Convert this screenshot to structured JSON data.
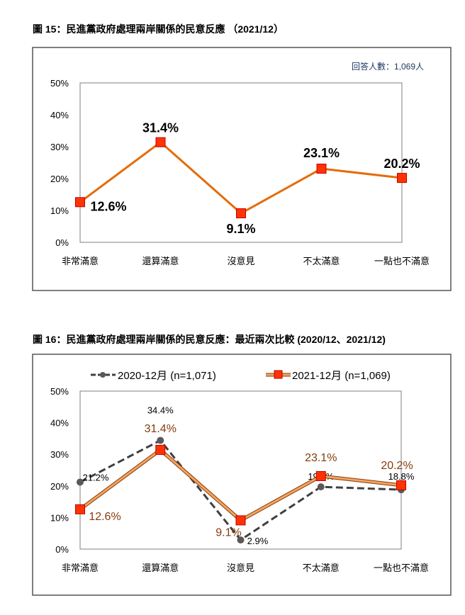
{
  "chart_data": [
    {
      "type": "line",
      "title": "圖 15：民進黨政府處理兩岸關係的民意反應 （2021/12）",
      "annotation": "回答人數：1,069人",
      "categories": [
        "非常滿意",
        "還算滿意",
        "沒意見",
        "不太滿意",
        "一點也不滿意"
      ],
      "ylim": [
        0,
        50
      ],
      "yticks": [
        "0%",
        "10%",
        "20%",
        "30%",
        "40%",
        "50%"
      ],
      "grid": false,
      "series": [
        {
          "values": [
            12.6,
            31.4,
            9.1,
            23.1,
            20.2
          ],
          "labels": [
            "12.6%",
            "31.4%",
            "9.1%",
            "23.1%",
            "20.2%"
          ],
          "color": "#e46c0a",
          "marker": "square"
        }
      ]
    },
    {
      "type": "line",
      "title": "圖 16：民進黨政府處理兩岸關係的民意反應：最近兩次比較 (2020/12、2021/12)",
      "categories": [
        "非常滿意",
        "還算滿意",
        "沒意見",
        "不太滿意",
        "一點也不滿意"
      ],
      "ylim": [
        0,
        50
      ],
      "yticks": [
        "0%",
        "10%",
        "20%",
        "30%",
        "40%",
        "50%"
      ],
      "grid": false,
      "legend": "top",
      "series": [
        {
          "name": "2020-12月  (n=1,071)",
          "values": [
            21.2,
            34.4,
            2.9,
            19.7,
            18.8
          ],
          "labels": [
            "21.2%",
            "34.4%",
            "2.9%",
            "19.7%",
            "18.8%"
          ],
          "color": "#404040",
          "marker": "circle",
          "dash": true
        },
        {
          "name": "2021-12月  (n=1,069)",
          "values": [
            12.6,
            31.4,
            9.1,
            23.1,
            20.2
          ],
          "labels": [
            "12.6%",
            "31.4%",
            "9.1%",
            "23.1%",
            "20.2%"
          ],
          "color": "#e46c0a",
          "label_color": "#843c0c",
          "marker": "square"
        }
      ]
    }
  ]
}
